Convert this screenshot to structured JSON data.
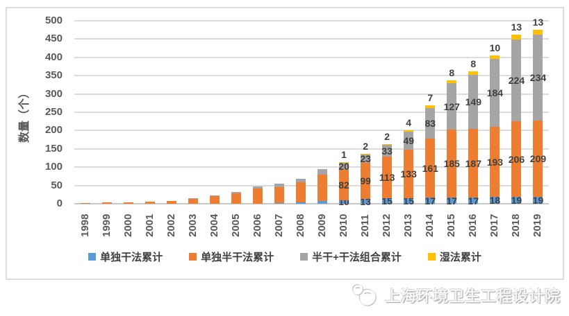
{
  "y_axis_title": "数量（个）",
  "watermark": {
    "text": "上海环境卫生工程设计院",
    "icon": "globe-emblem-icon"
  },
  "colors": {
    "dry_blue": "#5B9BD5",
    "semidry_orange": "#ED7D31",
    "combo_gray": "#A5A5A5",
    "wet_yellow": "#FFC000",
    "gridline": "#DCDCDC",
    "axis_text": "#595959",
    "data_label": "#3F3F3F"
  },
  "chart_data": {
    "type": "bar",
    "stacked": true,
    "title": "",
    "xlabel": "",
    "ylabel": "数量（个）",
    "ylim": [
      0,
      500
    ],
    "ytick_step": 50,
    "grid": true,
    "legend_position": "bottom",
    "categories": [
      "1998",
      "1999",
      "2000",
      "2001",
      "2002",
      "2003",
      "2004",
      "2005",
      "2006",
      "2007",
      "2008",
      "2009",
      "2010",
      "2011",
      "2012",
      "2013",
      "2014",
      "2015",
      "2016",
      "2017",
      "2018",
      "2019"
    ],
    "series": [
      {
        "name": "单独干法累计",
        "color": "#5B9BD5",
        "values": [
          0,
          0,
          0,
          0,
          0,
          0,
          0,
          0,
          0,
          2,
          3,
          7,
          10,
          13,
          15,
          15,
          17,
          17,
          17,
          18,
          19,
          19
        ]
      },
      {
        "name": "单独半干法累计",
        "color": "#ED7D31",
        "values": [
          1,
          3,
          3,
          5,
          8,
          14,
          21,
          29,
          42,
          43,
          55,
          72,
          82,
          99,
          113,
          133,
          161,
          185,
          187,
          193,
          206,
          209
        ]
      },
      {
        "name": "半干+干法组合累计",
        "color": "#A5A5A5",
        "values": [
          0,
          0,
          0,
          0,
          0,
          2,
          1,
          4,
          5,
          10,
          11,
          15,
          20,
          23,
          33,
          49,
          83,
          127,
          149,
          184,
          224,
          234
        ]
      },
      {
        "name": "湿法累计",
        "color": "#FFC000",
        "values": [
          0,
          0,
          0,
          0,
          0,
          0,
          0,
          0,
          0,
          0,
          0,
          0,
          1,
          2,
          2,
          4,
          7,
          8,
          8,
          10,
          13,
          13
        ]
      }
    ],
    "data_labels_shown_from_category": "2010"
  }
}
